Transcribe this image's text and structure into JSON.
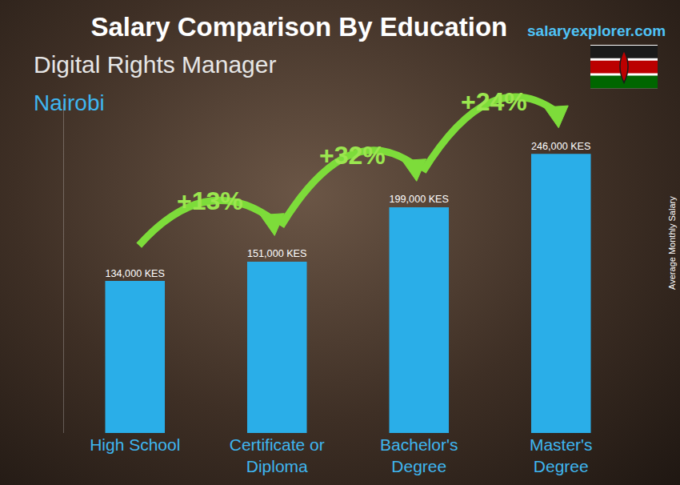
{
  "chart_data": {
    "type": "bar",
    "title": "Salary Comparison By Education",
    "subtitle": "Digital Rights Manager",
    "location": "Nairobi",
    "source": "salaryexplorer.com",
    "ylabel": "Average Monthly Salary",
    "categories": [
      "High School",
      "Certificate or Diploma",
      "Bachelor's Degree",
      "Master's Degree"
    ],
    "values": [
      134000,
      151000,
      199000,
      246000
    ],
    "value_labels": [
      "134,000 KES",
      "151,000 KES",
      "199,000 KES",
      "246,000 KES"
    ],
    "change_labels": [
      "+13%",
      "+32%",
      "+24%"
    ],
    "color": "#2aaee8",
    "ylim": [
      0,
      290000
    ],
    "data_labels": true,
    "tick_labels": "x",
    "grid": false
  }
}
